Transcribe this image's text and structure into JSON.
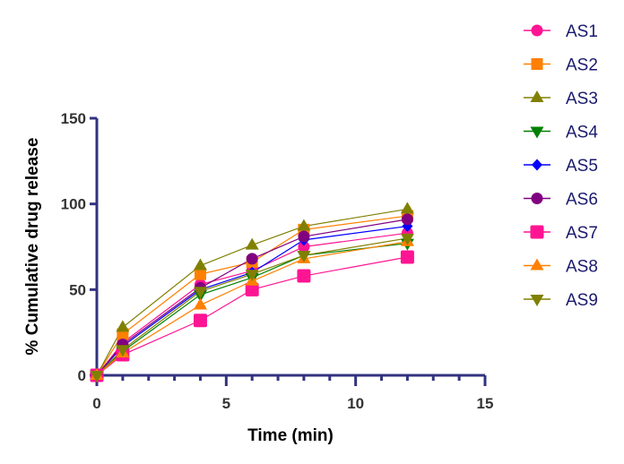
{
  "chart_data": {
    "type": "line",
    "title": "",
    "xlabel": "Time (min)",
    "ylabel": "% Cumulative drug release",
    "xlim": [
      0,
      15
    ],
    "ylim": [
      0,
      150
    ],
    "xticks": [
      0,
      5,
      10,
      15
    ],
    "yticks": [
      0,
      50,
      100,
      150
    ],
    "x_minor_step": 1,
    "grid": false,
    "legend_position": "right",
    "x": [
      0,
      1,
      4,
      6,
      8,
      12
    ],
    "series": [
      {
        "name": "AS1",
        "color": "#ff1493",
        "marker": "circle",
        "values": [
          0,
          19,
          53,
          61,
          75,
          83
        ]
      },
      {
        "name": "AS2",
        "color": "#ff8000",
        "marker": "square",
        "values": [
          0,
          24,
          59,
          66,
          85,
          93
        ]
      },
      {
        "name": "AS3",
        "color": "#808000",
        "marker": "triangle-up",
        "values": [
          0,
          28,
          64,
          76,
          87,
          97
        ]
      },
      {
        "name": "AS4",
        "color": "#008000",
        "marker": "triangle-down",
        "values": [
          0,
          14,
          47,
          57,
          70,
          77
        ]
      },
      {
        "name": "AS5",
        "color": "#0000ff",
        "marker": "diamond",
        "values": [
          0,
          17,
          50,
          60,
          79,
          87
        ]
      },
      {
        "name": "AS6",
        "color": "#800080",
        "marker": "circle",
        "values": [
          0,
          18,
          51,
          68,
          81,
          91
        ]
      },
      {
        "name": "AS7",
        "color": "#ff1493",
        "marker": "square-large",
        "values": [
          0,
          12,
          32,
          50,
          58,
          69
        ]
      },
      {
        "name": "AS8",
        "color": "#ff8000",
        "marker": "triangle-up",
        "values": [
          0,
          13,
          41,
          55,
          68,
          78
        ]
      },
      {
        "name": "AS9",
        "color": "#808000",
        "marker": "triangle-down",
        "values": [
          0,
          15,
          49,
          59,
          70,
          80
        ]
      }
    ],
    "axis_color": "#333380"
  }
}
